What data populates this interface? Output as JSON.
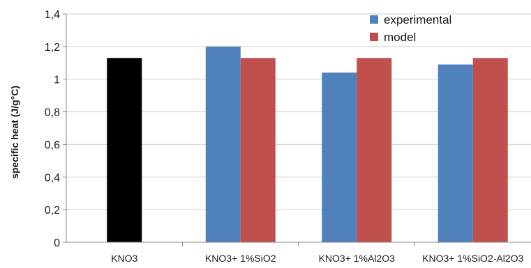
{
  "chart_data": {
    "type": "bar",
    "title": "",
    "xlabel": "",
    "ylabel": "specific heat (J/g°C)",
    "ylim": [
      0,
      1.4
    ],
    "yticks": [
      {
        "value": 0,
        "label": "0"
      },
      {
        "value": 0.2,
        "label": "0,2"
      },
      {
        "value": 0.4,
        "label": "0,4"
      },
      {
        "value": 0.6,
        "label": "0,6"
      },
      {
        "value": 0.8,
        "label": "0,8"
      },
      {
        "value": 1.0,
        "label": "1"
      },
      {
        "value": 1.2,
        "label": "1,2"
      },
      {
        "value": 1.4,
        "label": "1,4"
      }
    ],
    "categories": [
      "KNO3",
      "KNO3+ 1%SiO2",
      "KNO3+ 1%Al2O3",
      "KNO3+ 1%SiO2-Al2O3"
    ],
    "grid": true,
    "legend_position": "top-right",
    "baseline_bar": {
      "category": "KNO3",
      "value": 1.13,
      "color": "#000000"
    },
    "series": [
      {
        "name": "experimental",
        "color": "#4f81bd",
        "values": [
          null,
          1.2,
          1.04,
          1.09
        ]
      },
      {
        "name": "model",
        "color": "#c0504d",
        "values": [
          null,
          1.13,
          1.13,
          1.13
        ]
      }
    ]
  }
}
